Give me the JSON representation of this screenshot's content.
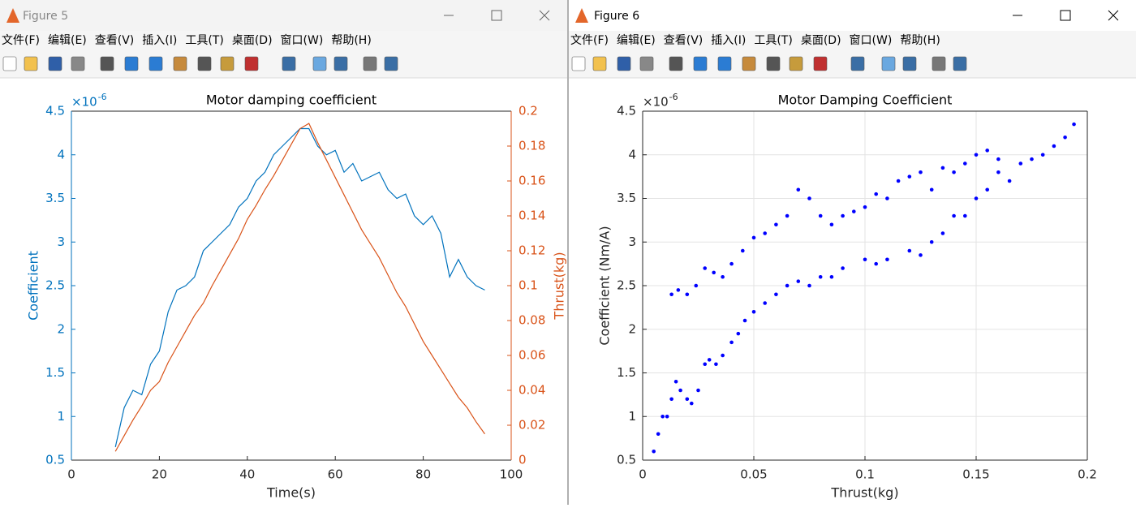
{
  "windows": [
    {
      "title": "Figure 5",
      "menu": [
        "文件(F)",
        "编辑(E)",
        "查看(V)",
        "插入(I)",
        "工具(T)",
        "桌面(D)",
        "窗口(W)",
        "帮助(H)"
      ]
    },
    {
      "title": "Figure 6",
      "menu": [
        "文件(F)",
        "编辑(E)",
        "查看(V)",
        "插入(I)",
        "工具(T)",
        "桌面(D)",
        "窗口(W)",
        "帮助(H)"
      ]
    }
  ],
  "chart_data": [
    {
      "type": "line",
      "title": "Motor damping coefficient",
      "xlabel": "Time(s)",
      "ylabel": "Coefficient",
      "y2label": "Thrust(kg)",
      "multiplier": {
        "base": "×10",
        "exponent": "-6"
      },
      "x": [
        10,
        12,
        14,
        16,
        18,
        20,
        22,
        24,
        26,
        28,
        30,
        32,
        34,
        36,
        38,
        40,
        42,
        44,
        46,
        48,
        50,
        52,
        54,
        56,
        58,
        60,
        62,
        64,
        66,
        68,
        70,
        72,
        74,
        76,
        78,
        80,
        82,
        84,
        86,
        88,
        90,
        92,
        94
      ],
      "series": [
        {
          "color": "#0072bd",
          "values": [
            0.65,
            1.1,
            1.3,
            1.25,
            1.6,
            1.75,
            2.2,
            2.45,
            2.5,
            2.6,
            2.9,
            3.0,
            3.1,
            3.2,
            3.4,
            3.5,
            3.7,
            3.8,
            4.0,
            4.1,
            4.2,
            4.3,
            4.3,
            4.1,
            4.0,
            4.05,
            3.8,
            3.9,
            3.7,
            3.75,
            3.8,
            3.6,
            3.5,
            3.55,
            3.3,
            3.2,
            3.3,
            3.1,
            2.6,
            2.8,
            2.6,
            2.5,
            2.45
          ]
        },
        {
          "color": "#d95319",
          "axis": "y2",
          "values": [
            0.005,
            0.014,
            0.023,
            0.031,
            0.04,
            0.045,
            0.056,
            0.065,
            0.074,
            0.083,
            0.09,
            0.1,
            0.109,
            0.118,
            0.127,
            0.138,
            0.146,
            0.155,
            0.163,
            0.172,
            0.181,
            0.19,
            0.193,
            0.182,
            0.172,
            0.162,
            0.152,
            0.142,
            0.132,
            0.124,
            0.116,
            0.106,
            0.096,
            0.088,
            0.078,
            0.068,
            0.06,
            0.052,
            0.044,
            0.036,
            0.03,
            0.022,
            0.015
          ]
        }
      ],
      "xlim": [
        0,
        100
      ],
      "xticks": [
        0,
        20,
        40,
        60,
        80,
        100
      ],
      "ylim": [
        0.5,
        4.5
      ],
      "yticks": [
        0.5,
        1,
        1.5,
        2,
        2.5,
        3,
        3.5,
        4,
        4.5
      ],
      "y2lim": [
        0,
        0.2
      ],
      "y2ticks": [
        0,
        0.02,
        0.04,
        0.06,
        0.08,
        0.1,
        0.12,
        0.14,
        0.16,
        0.18,
        0.2
      ],
      "grid": false
    },
    {
      "type": "scatter",
      "title": "Motor Damping Coefficient",
      "xlabel": "Thrust(kg)",
      "ylabel": "Coefficient (Nm/A)",
      "multiplier": {
        "base": "×10",
        "exponent": "-6"
      },
      "color": "#0000ff",
      "x": [
        0.005,
        0.007,
        0.009,
        0.011,
        0.013,
        0.015,
        0.017,
        0.02,
        0.022,
        0.025,
        0.028,
        0.03,
        0.033,
        0.036,
        0.04,
        0.043,
        0.046,
        0.05,
        0.055,
        0.06,
        0.065,
        0.07,
        0.075,
        0.08,
        0.085,
        0.09,
        0.1,
        0.105,
        0.11,
        0.12,
        0.125,
        0.13,
        0.135,
        0.14,
        0.145,
        0.15,
        0.155,
        0.16,
        0.165,
        0.17,
        0.175,
        0.18,
        0.185,
        0.19,
        0.194,
        0.013,
        0.016,
        0.02,
        0.024,
        0.028,
        0.032,
        0.036,
        0.04,
        0.045,
        0.05,
        0.055,
        0.06,
        0.065,
        0.07,
        0.075,
        0.08,
        0.085,
        0.09,
        0.095,
        0.1,
        0.105,
        0.11,
        0.115,
        0.12,
        0.125,
        0.13,
        0.135,
        0.14,
        0.145,
        0.15,
        0.155,
        0.16
      ],
      "values": [
        0.6,
        0.8,
        1.0,
        1.0,
        1.2,
        1.4,
        1.3,
        1.2,
        1.15,
        1.3,
        1.6,
        1.65,
        1.6,
        1.7,
        1.85,
        1.95,
        2.1,
        2.2,
        2.3,
        2.4,
        2.5,
        2.55,
        2.5,
        2.6,
        2.6,
        2.7,
        2.8,
        2.75,
        2.8,
        2.9,
        2.85,
        3.0,
        3.1,
        3.3,
        3.3,
        3.5,
        3.6,
        3.8,
        3.7,
        3.9,
        3.95,
        4.0,
        4.1,
        4.2,
        4.35,
        2.4,
        2.45,
        2.4,
        2.5,
        2.7,
        2.65,
        2.6,
        2.75,
        2.9,
        3.05,
        3.1,
        3.2,
        3.3,
        3.6,
        3.5,
        3.3,
        3.2,
        3.3,
        3.35,
        3.4,
        3.55,
        3.5,
        3.7,
        3.75,
        3.8,
        3.6,
        3.85,
        3.8,
        3.9,
        4.0,
        4.05,
        3.95
      ],
      "xlim": [
        0,
        0.2
      ],
      "xticks": [
        0,
        0.05,
        0.1,
        0.15,
        0.2
      ],
      "ylim": [
        0.5,
        4.5
      ],
      "yticks": [
        0.5,
        1,
        1.5,
        2,
        2.5,
        3,
        3.5,
        4,
        4.5
      ],
      "grid": true
    }
  ]
}
